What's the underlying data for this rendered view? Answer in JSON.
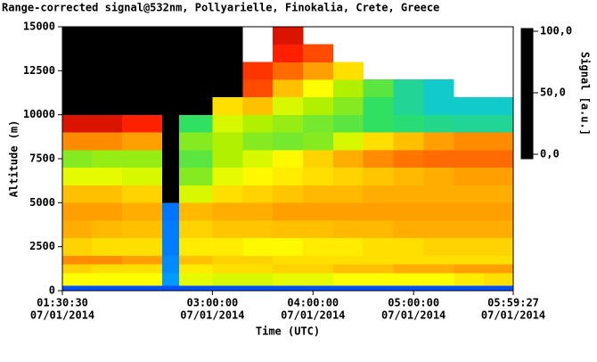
{
  "chart_data": {
    "type": "heatmap",
    "title": "Range-corrected signal@532nm, Pollyarielle, Finokalia, Crete, Greece",
    "xlabel": "Time (UTC)",
    "ylabel": "Altitude (m)",
    "colorbar_label": "Signal [a.u.]",
    "x": [
      1.5083,
      1.8,
      2.1,
      2.5,
      2.67,
      3.0,
      3.3,
      3.6,
      3.9,
      4.2,
      4.5,
      4.8,
      5.1,
      5.4,
      5.7,
      5.9908
    ],
    "y": [
      0,
      300,
      1000,
      1500,
      2000,
      3000,
      4000,
      5000,
      6000,
      7000,
      8000,
      9000,
      10000,
      11000,
      12000,
      13000,
      14000,
      15000
    ],
    "z": [
      [
        10,
        10,
        10,
        10,
        10,
        10,
        10,
        10,
        10,
        10,
        10,
        10,
        10,
        10,
        10
      ],
      [
        65,
        65,
        65,
        20,
        62,
        60,
        60,
        62,
        62,
        65,
        65,
        65,
        65,
        68,
        70
      ],
      [
        72,
        70,
        70,
        18,
        68,
        70,
        70,
        72,
        72,
        75,
        75,
        78,
        78,
        80,
        80
      ],
      [
        82,
        82,
        80,
        18,
        75,
        72,
        72,
        70,
        70,
        70,
        70,
        70,
        70,
        70,
        70
      ],
      [
        72,
        70,
        70,
        16,
        68,
        68,
        66,
        66,
        68,
        68,
        70,
        70,
        72,
        72,
        72
      ],
      [
        78,
        76,
        75,
        16,
        72,
        74,
        74,
        75,
        75,
        76,
        76,
        78,
        78,
        78,
        78
      ],
      [
        80,
        80,
        78,
        15,
        76,
        78,
        78,
        80,
        80,
        80,
        80,
        80,
        80,
        80,
        80
      ],
      [
        75,
        75,
        72,
        -5,
        60,
        70,
        72,
        74,
        76,
        76,
        78,
        78,
        78,
        78,
        78
      ],
      [
        62,
        62,
        60,
        -5,
        50,
        62,
        66,
        68,
        70,
        72,
        74,
        76,
        78,
        80,
        80
      ],
      [
        50,
        52,
        52,
        -5,
        45,
        55,
        60,
        66,
        72,
        78,
        82,
        84,
        85,
        85,
        85
      ],
      [
        82,
        82,
        80,
        -5,
        50,
        55,
        50,
        48,
        50,
        60,
        70,
        75,
        80,
        82,
        82
      ],
      [
        95,
        95,
        92,
        -5,
        40,
        60,
        55,
        52,
        48,
        45,
        40,
        38,
        36,
        35,
        35
      ],
      [
        -10,
        -10,
        -10,
        -10,
        -10,
        70,
        75,
        60,
        55,
        50,
        40,
        35,
        30,
        30,
        30
      ],
      [
        -10,
        -10,
        -10,
        -10,
        -10,
        -8,
        88,
        75,
        65,
        55,
        45,
        35,
        30,
        null,
        null
      ],
      [
        -10,
        -10,
        -10,
        -10,
        -10,
        -8,
        90,
        85,
        80,
        70,
        null,
        null,
        null,
        null,
        null
      ],
      [
        -10,
        -10,
        -10,
        -10,
        -10,
        -8,
        null,
        92,
        88,
        null,
        null,
        null,
        null,
        null,
        null
      ],
      [
        -10,
        -10,
        -10,
        -10,
        -10,
        -8,
        null,
        95,
        null,
        null,
        null,
        null,
        null,
        null,
        null
      ]
    ],
    "xlim": [
      1.5083,
      5.9908
    ],
    "xticks": [
      {
        "value": 1.5083,
        "label": "01:30:30",
        "date": "07/01/2014"
      },
      {
        "value": 3,
        "label": "03:00:00",
        "date": "07/01/2014"
      },
      {
        "value": 4,
        "label": "04:00:00",
        "date": "07/01/2014"
      },
      {
        "value": 5,
        "label": "05:00:00",
        "date": "07/01/2014"
      },
      {
        "value": 5.9908,
        "label": "05:59:27",
        "date": "07/01/2014"
      }
    ],
    "ylim": [
      0,
      15000
    ],
    "yticks": [
      0,
      2500,
      5000,
      7500,
      10000,
      12500,
      15000
    ],
    "clim": [
      -3.6,
      102.2
    ],
    "cticks": [
      {
        "value": 0,
        "label": "0,0"
      },
      {
        "value": 50,
        "label": "50,0"
      },
      {
        "value": 100,
        "label": "100,0"
      }
    ],
    "colorscale": [
      [
        -3.6,
        "#000000"
      ],
      [
        -0.5,
        "#000000"
      ],
      [
        0,
        "#0000b0"
      ],
      [
        10,
        "#0050ff"
      ],
      [
        25,
        "#00c0ff"
      ],
      [
        40,
        "#30e060"
      ],
      [
        55,
        "#b0f000"
      ],
      [
        65,
        "#ffff00"
      ],
      [
        80,
        "#ffa000"
      ],
      [
        92,
        "#ff2000"
      ],
      [
        100,
        "#a00000"
      ]
    ]
  }
}
